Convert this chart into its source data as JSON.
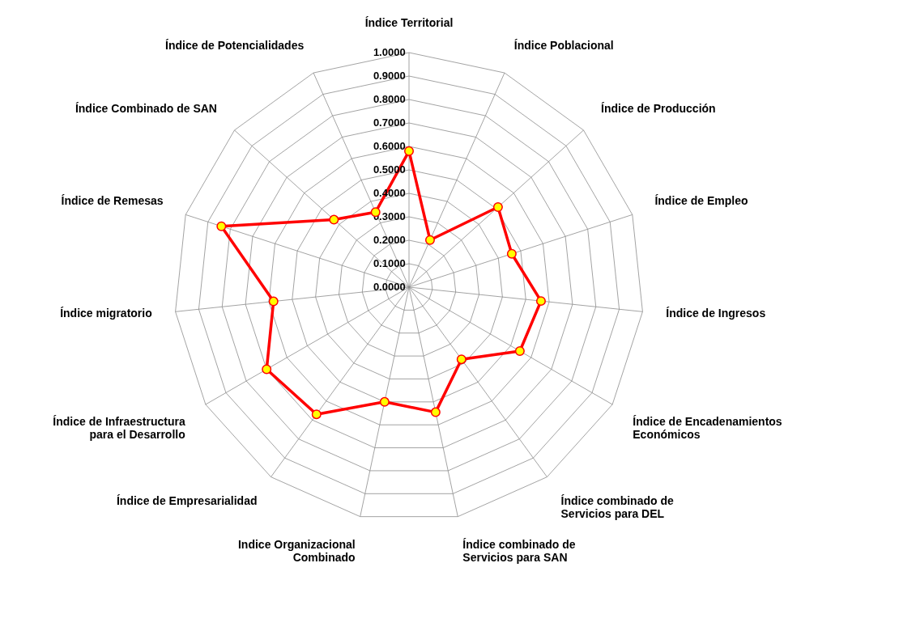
{
  "chart_data": {
    "type": "radar",
    "categories": [
      "Índice Territorial",
      "Índice Poblacional",
      "Índice de Producción",
      "Índice de Empleo",
      "Índice de Ingresos",
      "Índice de Encadenamientos Económicos",
      "Índice combinado de Servicios para DEL",
      "Índice combinado de Servicios para SAN",
      "Indice Organizacional Combinado",
      "Índice de Empresarialidad",
      "Índice de Infraestructura para el Desarrollo",
      "Índice migratorio",
      "Índice de Remesas",
      "Índice Combinado de SAN",
      "Índice de Potencialidades"
    ],
    "series": [
      {
        "color": "#ff0000",
        "values": [
          0.58,
          0.22,
          0.51,
          0.46,
          0.565,
          0.545,
          0.38,
          0.545,
          0.5,
          0.67,
          0.7,
          0.58,
          0.84,
          0.43,
          0.35
        ]
      }
    ],
    "ylim": [
      0,
      1
    ],
    "yticks": [
      {
        "value": 0,
        "label": "0.0000"
      },
      {
        "value": 0.1,
        "label": "0.1000"
      },
      {
        "value": 0.2,
        "label": "0.2000"
      },
      {
        "value": 0.3,
        "label": "0.3000"
      },
      {
        "value": 0.4,
        "label": "0.4000"
      },
      {
        "value": 0.5,
        "label": "0.5000"
      },
      {
        "value": 0.6,
        "label": "0.6000"
      },
      {
        "value": 0.7,
        "label": "0.7000"
      },
      {
        "value": 0.8,
        "label": "0.8000"
      },
      {
        "value": 0.9,
        "label": "0.9000"
      },
      {
        "value": 1,
        "label": "1.0000"
      }
    ],
    "grid": true,
    "marker": "circle",
    "line_style": "solid"
  }
}
